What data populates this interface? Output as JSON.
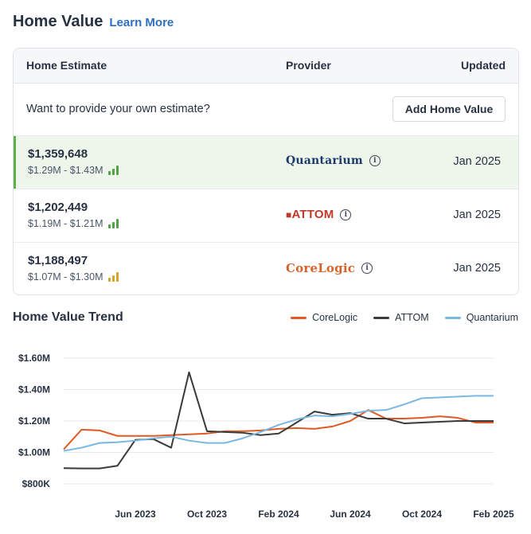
{
  "header": {
    "title": "Home Value",
    "link": "Learn More"
  },
  "table": {
    "columns": {
      "estimate": "Home Estimate",
      "provider": "Provider",
      "updated": "Updated"
    },
    "own_prompt": "Want to provide your own estimate?",
    "own_button": "Add Home Value",
    "rows": [
      {
        "value": "$1,359,648",
        "range": "$1.29M - $1.43M",
        "provider": "Quantarium",
        "updated": "Jan 2025",
        "confidence_color": "#4fa543",
        "active": true
      },
      {
        "value": "$1,202,449",
        "range": "$1.19M - $1.21M",
        "provider": "ATTOM",
        "updated": "Jan 2025",
        "confidence_color": "#4fa543",
        "active": false
      },
      {
        "value": "$1,188,497",
        "range": "$1.07M - $1.30M",
        "provider": "CoreLogic",
        "updated": "Jan 2025",
        "confidence_color": "#d4a52a",
        "active": false
      }
    ]
  },
  "trend": {
    "title": "Home Value Trend",
    "legend": [
      {
        "name": "CoreLogic",
        "color": "#e05a23"
      },
      {
        "name": "ATTOM",
        "color": "#3a3a3a"
      },
      {
        "name": "Quantarium",
        "color": "#7ab8e2"
      }
    ]
  },
  "chart_data": {
    "type": "line",
    "ylim": [
      800000,
      1600000
    ],
    "yticks": [
      "$1.60M",
      "$1.40M",
      "$1.20M",
      "$1.00M",
      "$800K"
    ],
    "xticks": [
      "Jun 2023",
      "Oct 2023",
      "Feb 2024",
      "Jun 2024",
      "Oct 2024",
      "Feb 2025"
    ],
    "x": [
      "Feb 2023",
      "Mar 2023",
      "Apr 2023",
      "May 2023",
      "Jun 2023",
      "Jul 2023",
      "Aug 2023",
      "Sep 2023",
      "Oct 2023",
      "Nov 2023",
      "Dec 2023",
      "Jan 2024",
      "Feb 2024",
      "Mar 2024",
      "Apr 2024",
      "May 2024",
      "Jun 2024",
      "Jul 2024",
      "Aug 2024",
      "Sep 2024",
      "Oct 2024",
      "Nov 2024",
      "Dec 2024",
      "Jan 2025",
      "Feb 2025"
    ],
    "series": [
      {
        "name": "CoreLogic",
        "color": "#e05a23",
        "values": [
          1020000,
          1145000,
          1140000,
          1105000,
          1105000,
          1105000,
          1110000,
          1115000,
          1120000,
          1135000,
          1135000,
          1140000,
          1150000,
          1155000,
          1150000,
          1165000,
          1200000,
          1270000,
          1215000,
          1215000,
          1220000,
          1230000,
          1220000,
          1190000,
          1190000
        ]
      },
      {
        "name": "ATTOM",
        "color": "#3a3a3a",
        "values": [
          900000,
          898000,
          898000,
          915000,
          1080000,
          1085000,
          1030000,
          1510000,
          1135000,
          1130000,
          1125000,
          1110000,
          1120000,
          1190000,
          1260000,
          1240000,
          1250000,
          1215000,
          1215000,
          1185000,
          1190000,
          1195000,
          1200000,
          1200000,
          1200000
        ]
      },
      {
        "name": "Quantarium",
        "color": "#7ab8e2",
        "values": [
          1010000,
          1030000,
          1060000,
          1065000,
          1075000,
          1090000,
          1100000,
          1075000,
          1060000,
          1060000,
          1090000,
          1130000,
          1175000,
          1210000,
          1235000,
          1230000,
          1245000,
          1265000,
          1270000,
          1305000,
          1345000,
          1350000,
          1355000,
          1360000,
          1360000
        ]
      }
    ]
  }
}
